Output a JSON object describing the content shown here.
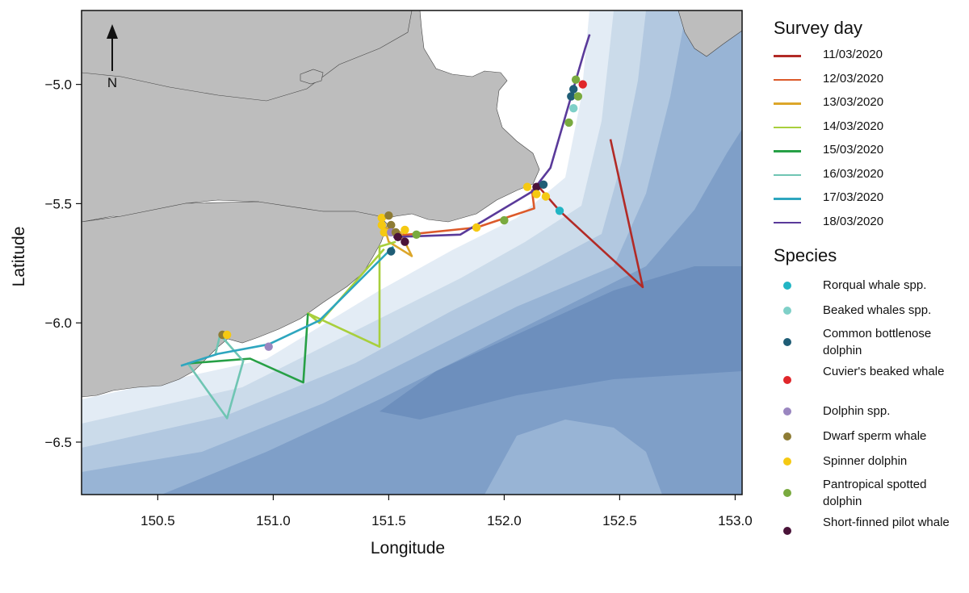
{
  "map": {
    "xlabel": "Longitude",
    "ylabel": "Latitude",
    "x_ticks": [
      150.5,
      151.0,
      151.5,
      152.0,
      152.5,
      153.0
    ],
    "y_ticks": [
      -5.0,
      -5.5,
      -6.0,
      -6.5
    ],
    "x_tick_labels": [
      "150.5",
      "151.0",
      "151.5",
      "152.0",
      "152.5",
      "153.0"
    ],
    "y_tick_labels": [
      "−5.0",
      "−5.5",
      "−6.0",
      "−6.5"
    ],
    "xlim": [
      150.17,
      153.03
    ],
    "ylim": [
      -6.72,
      -4.69
    ],
    "north_arrow_label": "N",
    "land_color": "#bdbdbd",
    "ocean_colors": [
      "#ffffff",
      "#e3ecf5",
      "#cbdbea",
      "#b2c8e0",
      "#98b4d5",
      "#7f9fc8",
      "#6d8fbd"
    ],
    "survey_day_title": "Survey day",
    "species_title": "Species",
    "survey_days": [
      {
        "date": "11/03/2020",
        "color": "#b22a26"
      },
      {
        "date": "12/03/2020",
        "color": "#dc5a2a"
      },
      {
        "date": "13/03/2020",
        "color": "#dca62a"
      },
      {
        "date": "14/03/2020",
        "color": "#a8cf3c"
      },
      {
        "date": "15/03/2020",
        "color": "#27a046"
      },
      {
        "date": "16/03/2020",
        "color": "#6fc5b3"
      },
      {
        "date": "17/03/2020",
        "color": "#2ea6bf"
      },
      {
        "date": "18/03/2020",
        "color": "#5a3a9a"
      }
    ],
    "species": [
      {
        "name": "Rorqual whale spp.",
        "color": "#22b5c4"
      },
      {
        "name": "Beaked whales spp.",
        "color": "#7fd0c8"
      },
      {
        "name": "Common bottlenose dolphin",
        "color": "#1f5d76"
      },
      {
        "name": "Cuvier's beaked whale",
        "color": "#e0262a"
      },
      {
        "name": "Dolphin spp.",
        "color": "#9a86c0"
      },
      {
        "name": "Dwarf sperm whale",
        "color": "#8e7c35"
      },
      {
        "name": "Spinner dolphin",
        "color": "#f5c912"
      },
      {
        "name": "Pantropical spotted dolphin",
        "color": "#79aa3f"
      },
      {
        "name": "Short-finned pilot whale",
        "color": "#4a1339"
      }
    ],
    "tracks": [
      {
        "day": 0,
        "points": [
          [
            152.46,
            -5.23
          ],
          [
            152.6,
            -5.85
          ],
          [
            152.24,
            -5.53
          ],
          [
            152.15,
            -5.43
          ]
        ]
      },
      {
        "day": 1,
        "points": [
          [
            152.12,
            -5.44
          ],
          [
            152.13,
            -5.52
          ],
          [
            151.88,
            -5.6
          ],
          [
            151.58,
            -5.63
          ],
          [
            151.5,
            -5.63
          ]
        ]
      },
      {
        "day": 2,
        "points": [
          [
            151.47,
            -5.56
          ],
          [
            151.5,
            -5.66
          ],
          [
            151.6,
            -5.72
          ],
          [
            151.55,
            -5.62
          ],
          [
            151.48,
            -5.6
          ]
        ]
      },
      {
        "day": 3,
        "points": [
          [
            151.53,
            -5.66
          ],
          [
            151.46,
            -5.68
          ],
          [
            151.46,
            -6.1
          ],
          [
            151.15,
            -5.96
          ],
          [
            151.2,
            -6.0
          ],
          [
            151.48,
            -5.69
          ]
        ]
      },
      {
        "day": 4,
        "points": [
          [
            151.15,
            -5.96
          ],
          [
            151.13,
            -6.25
          ],
          [
            150.9,
            -6.15
          ],
          [
            150.63,
            -6.17
          ]
        ]
      },
      {
        "day": 5,
        "points": [
          [
            150.63,
            -6.17
          ],
          [
            150.8,
            -6.4
          ],
          [
            150.87,
            -6.16
          ],
          [
            150.77,
            -6.05
          ],
          [
            150.75,
            -6.13
          ]
        ]
      },
      {
        "day": 6,
        "points": [
          [
            150.6,
            -6.18
          ],
          [
            150.76,
            -6.13
          ],
          [
            150.98,
            -6.09
          ],
          [
            151.2,
            -5.99
          ],
          [
            151.5,
            -5.7
          ],
          [
            151.52,
            -5.68
          ]
        ]
      },
      {
        "day": 7,
        "points": [
          [
            151.52,
            -5.64
          ],
          [
            151.81,
            -5.63
          ],
          [
            152.12,
            -5.45
          ],
          [
            152.2,
            -5.35
          ],
          [
            152.35,
            -4.85
          ],
          [
            152.37,
            -4.79
          ]
        ]
      }
    ],
    "sightings": [
      {
        "lon": 152.34,
        "lat": -5.0,
        "species": 3
      },
      {
        "lon": 152.31,
        "lat": -4.98,
        "species": 7
      },
      {
        "lon": 152.3,
        "lat": -5.02,
        "species": 2
      },
      {
        "lon": 152.29,
        "lat": -5.05,
        "species": 2
      },
      {
        "lon": 152.32,
        "lat": -5.05,
        "species": 7
      },
      {
        "lon": 152.3,
        "lat": -5.1,
        "species": 1
      },
      {
        "lon": 152.28,
        "lat": -5.16,
        "species": 7
      },
      {
        "lon": 152.1,
        "lat": -5.43,
        "species": 6
      },
      {
        "lon": 152.14,
        "lat": -5.43,
        "species": 8
      },
      {
        "lon": 152.17,
        "lat": -5.42,
        "species": 2
      },
      {
        "lon": 152.14,
        "lat": -5.46,
        "species": 6
      },
      {
        "lon": 152.18,
        "lat": -5.47,
        "species": 6
      },
      {
        "lon": 152.24,
        "lat": -5.53,
        "species": 0
      },
      {
        "lon": 152.0,
        "lat": -5.57,
        "species": 7
      },
      {
        "lon": 151.88,
        "lat": -5.6,
        "species": 6
      },
      {
        "lon": 151.47,
        "lat": -5.56,
        "species": 6
      },
      {
        "lon": 151.5,
        "lat": -5.55,
        "species": 5
      },
      {
        "lon": 151.47,
        "lat": -5.59,
        "species": 6
      },
      {
        "lon": 151.51,
        "lat": -5.59,
        "species": 5
      },
      {
        "lon": 151.48,
        "lat": -5.62,
        "species": 6
      },
      {
        "lon": 151.51,
        "lat": -5.62,
        "species": 4
      },
      {
        "lon": 151.53,
        "lat": -5.62,
        "species": 5
      },
      {
        "lon": 151.57,
        "lat": -5.61,
        "species": 6
      },
      {
        "lon": 151.62,
        "lat": -5.63,
        "species": 7
      },
      {
        "lon": 151.54,
        "lat": -5.64,
        "species": 8
      },
      {
        "lon": 151.57,
        "lat": -5.66,
        "species": 8
      },
      {
        "lon": 151.51,
        "lat": -5.7,
        "species": 2
      },
      {
        "lon": 150.78,
        "lat": -6.05,
        "species": 5
      },
      {
        "lon": 150.8,
        "lat": -6.05,
        "species": 6
      },
      {
        "lon": 150.98,
        "lat": -6.1,
        "species": 4
      }
    ]
  }
}
